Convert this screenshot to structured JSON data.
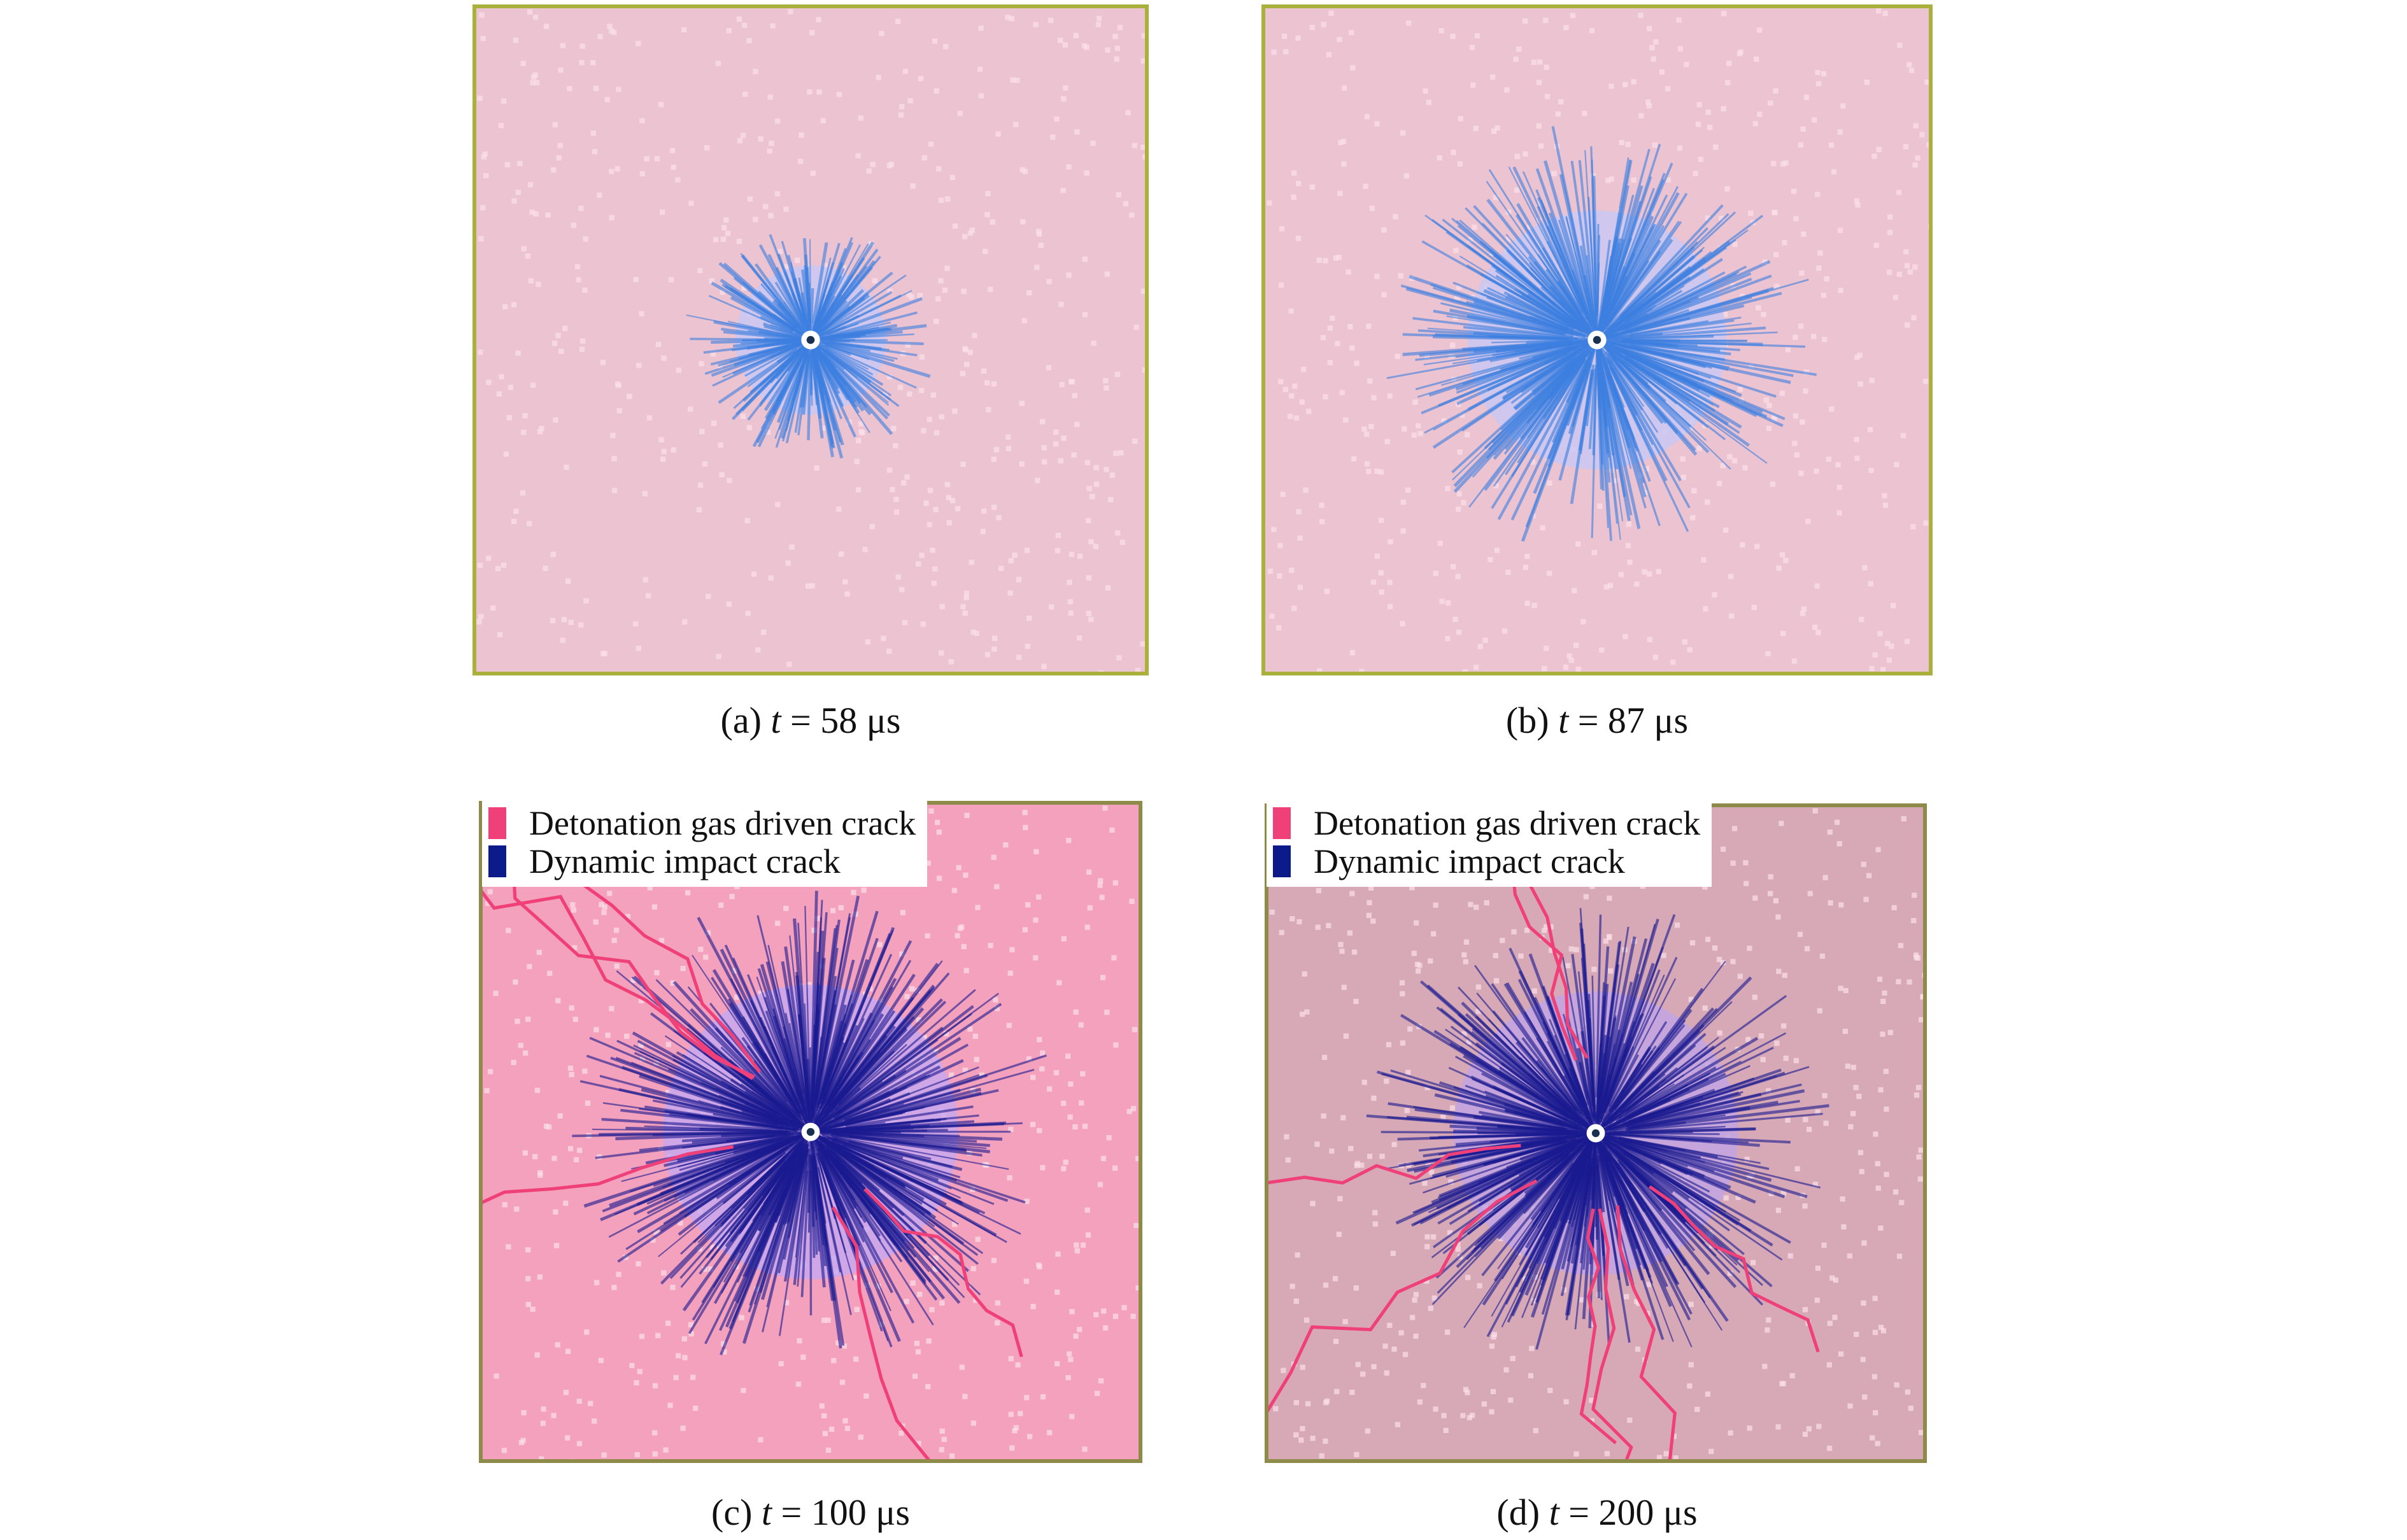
{
  "panels": [
    {
      "id": "a",
      "caption_prefix": "(a) ",
      "caption_var": "t",
      "caption_suffix": " = 58 μs"
    },
    {
      "id": "b",
      "caption_prefix": "(b) ",
      "caption_var": "t",
      "caption_suffix": " = 87 μs"
    },
    {
      "id": "c",
      "caption_prefix": "(c) ",
      "caption_var": "t",
      "caption_suffix": " = 100 μs"
    },
    {
      "id": "d",
      "caption_prefix": "(d) ",
      "caption_var": "t",
      "caption_suffix": " = 200 μs"
    }
  ],
  "legend": {
    "items": [
      {
        "label": "Detonation gas driven crack",
        "color": "#f0407a"
      },
      {
        "label": "Dynamic impact crack",
        "color": "#0c1a8a"
      }
    ]
  },
  "colors": {
    "early_crack": "#3c7fe0",
    "impact_crack": "#1a1a90",
    "gas_crack": "#f0407a"
  }
}
